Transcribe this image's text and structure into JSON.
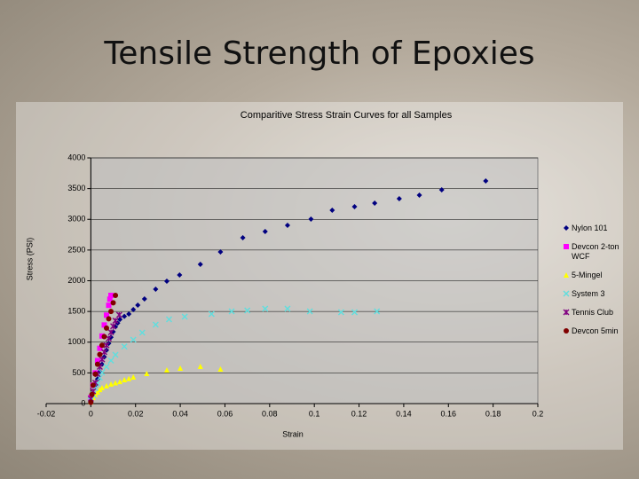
{
  "title": "Tensile Strength of Epoxies",
  "chart_data": {
    "type": "scatter",
    "title": "Comparitive Stress Strain Curves for all Samples",
    "x_label": "Strain",
    "y_label": "Stress (PSI)",
    "xlim": [
      -0.02,
      0.2
    ],
    "xticks": [
      -0.02,
      0,
      0.02,
      0.04,
      0.06,
      0.08,
      0.1,
      0.12,
      0.14,
      0.16,
      0.18,
      0.2
    ],
    "ylim": [
      0,
      4000
    ],
    "yticks": [
      0,
      500,
      1000,
      1500,
      2000,
      2500,
      3000,
      3500,
      4000
    ],
    "grid": true,
    "legend": "right",
    "series": [
      {
        "name": "Nylon 101",
        "color": "#000080",
        "marker": "diamond",
        "x": [
          0,
          0.001,
          0.002,
          0.003,
          0.004,
          0.005,
          0.006,
          0.007,
          0.008,
          0.009,
          0.01,
          0.011,
          0.012,
          0.013,
          0.015,
          0.017,
          0.019,
          0.021,
          0.024,
          0.029,
          0.034,
          0.0397,
          0.049,
          0.058,
          0.068,
          0.078,
          0.088,
          0.0985,
          0.108,
          0.118,
          0.127,
          0.138,
          0.147,
          0.157,
          0.1767
        ],
        "values": [
          50,
          150,
          280,
          400,
          520,
          640,
          760,
          870,
          980,
          1080,
          1170,
          1250,
          1310,
          1370,
          1420,
          1458,
          1530,
          1603,
          1704,
          1863,
          1993,
          2094,
          2267,
          2469,
          2700,
          2801,
          2902,
          3004,
          3148,
          3206,
          3264,
          3336,
          3394,
          3480,
          3625
        ]
      },
      {
        "name": "Devcon 2-ton WCF",
        "color": "#ff00ff",
        "marker": "square",
        "x": [
          0,
          0.001,
          0.002,
          0.003,
          0.004,
          0.005,
          0.006,
          0.007,
          0.008,
          0.0085,
          0.009
        ],
        "values": [
          100,
          300,
          500,
          700,
          900,
          1100,
          1280,
          1440,
          1600,
          1700,
          1762
        ]
      },
      {
        "name": "5-Mingel",
        "color": "#ffff00",
        "marker": "triangle",
        "x": [
          0,
          0.001,
          0.002,
          0.003,
          0.004,
          0.005,
          0.007,
          0.009,
          0.011,
          0.013,
          0.015,
          0.017,
          0.019,
          0.025,
          0.034,
          0.04,
          0.049,
          0.058
        ],
        "values": [
          30,
          100,
          150,
          190,
          230,
          260,
          290,
          320,
          340,
          360,
          390,
          410,
          433,
          491,
          549,
          578,
          606,
          563
        ]
      },
      {
        "name": "System 3",
        "color": "#5fdede",
        "marker": "x",
        "x": [
          0,
          0.001,
          0.002,
          0.003,
          0.004,
          0.005,
          0.007,
          0.009,
          0.011,
          0.015,
          0.019,
          0.023,
          0.029,
          0.035,
          0.042,
          0.054,
          0.063,
          0.07,
          0.078,
          0.088,
          0.098,
          0.112,
          0.118,
          0.128
        ],
        "values": [
          50,
          150,
          250,
          330,
          420,
          505,
          600,
          700,
          794,
          930,
          1040,
          1155,
          1285,
          1372,
          1415,
          1458,
          1502,
          1516,
          1545,
          1545,
          1502,
          1487,
          1487,
          1502
        ]
      },
      {
        "name": "Tennis Club",
        "color": "#800080",
        "marker": "star",
        "x": [
          0,
          0.001,
          0.002,
          0.003,
          0.004,
          0.005,
          0.006,
          0.007,
          0.008,
          0.009,
          0.01,
          0.011,
          0.0127
        ],
        "values": [
          80,
          200,
          340,
          480,
          600,
          720,
          840,
          950,
          1060,
          1160,
          1260,
          1350,
          1444
        ]
      },
      {
        "name": "Devcon 5min",
        "color": "#800000",
        "marker": "circle",
        "x": [
          0,
          0.0005,
          0.001,
          0.002,
          0.003,
          0.004,
          0.005,
          0.006,
          0.007,
          0.008,
          0.009,
          0.01,
          0.011
        ],
        "values": [
          20,
          150,
          300,
          480,
          640,
          800,
          950,
          1090,
          1230,
          1380,
          1500,
          1640,
          1762
        ]
      }
    ]
  }
}
